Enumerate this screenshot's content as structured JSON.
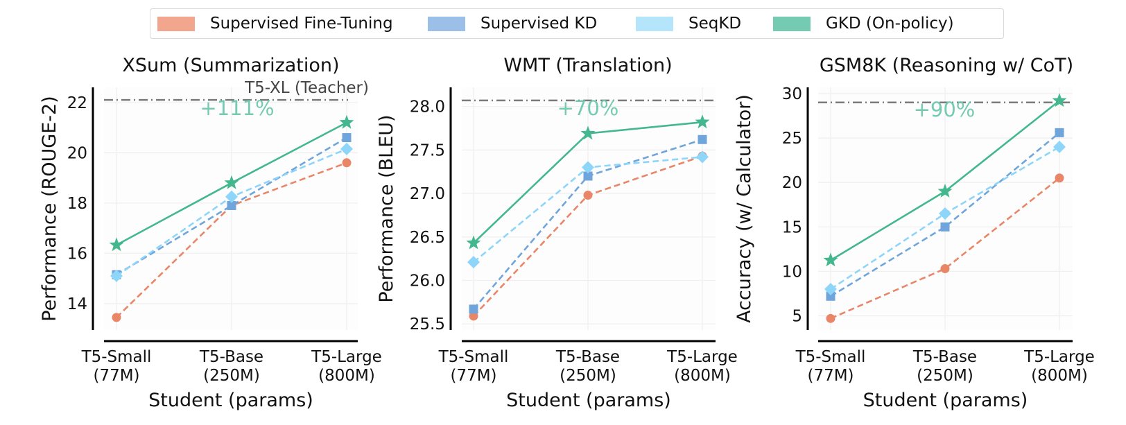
{
  "legend": {
    "items": [
      {
        "label": "Supervised Fine-Tuning",
        "color": "#F2A68D",
        "line_color": "#E98668",
        "marker": "circle",
        "dash": true
      },
      {
        "label": "Supervised KD",
        "color": "#9BBFE6",
        "line_color": "#70A5DC",
        "marker": "square",
        "dash": true
      },
      {
        "label": "SeqKD",
        "color": "#B5E5FB",
        "line_color": "#8DD5F9",
        "marker": "diamond",
        "dash": true
      },
      {
        "label": "GKD (On-policy)",
        "color": "#74CBB1",
        "line_color": "#43B78D",
        "marker": "star",
        "dash": false
      }
    ]
  },
  "chart_data": [
    {
      "type": "line",
      "title": "XSum (Summarization)",
      "xlabel": "Student (params)",
      "ylabel": "Performance (ROUGE-2)",
      "categories": [
        "T5-Small\n(77M)",
        "T5-Base\n(250M)",
        "T5-Large\n(800M)"
      ],
      "yticks": [
        14,
        16,
        18,
        20,
        22
      ],
      "ytick_labels": [
        "14",
        "16",
        "18",
        "20",
        "22"
      ],
      "ylim": [
        12.95,
        22.6
      ],
      "grid": true,
      "teacher": {
        "value": 22.1,
        "label": "T5-XL (Teacher)"
      },
      "annotation": "+111%",
      "series": [
        {
          "name": "Supervised Fine-Tuning",
          "values": [
            13.45,
            17.9,
            19.6
          ]
        },
        {
          "name": "Supervised KD",
          "values": [
            15.15,
            17.9,
            20.6
          ]
        },
        {
          "name": "SeqKD",
          "values": [
            15.1,
            18.25,
            20.15
          ]
        },
        {
          "name": "GKD (On-policy)",
          "values": [
            16.33,
            18.8,
            21.2
          ]
        }
      ]
    },
    {
      "type": "line",
      "title": "WMT (Translation)",
      "xlabel": "Student (params)",
      "ylabel": "Performance (BLEU)",
      "categories": [
        "T5-Small\n(77M)",
        "T5-Base\n(250M)",
        "T5-Large\n(800M)"
      ],
      "yticks": [
        25.5,
        26.0,
        26.5,
        27.0,
        27.5,
        28.0
      ],
      "ytick_labels": [
        "25.5",
        "26.0",
        "26.5",
        "27.0",
        "27.5",
        "28.0"
      ],
      "ylim": [
        25.43,
        28.22
      ],
      "grid": true,
      "teacher": {
        "value": 28.07,
        "label": ""
      },
      "annotation": "+70%",
      "series": [
        {
          "name": "Supervised Fine-Tuning",
          "values": [
            25.59,
            26.98,
            27.43
          ]
        },
        {
          "name": "Supervised KD",
          "values": [
            25.67,
            27.2,
            27.62
          ]
        },
        {
          "name": "SeqKD",
          "values": [
            26.21,
            27.3,
            27.42
          ]
        },
        {
          "name": "GKD (On-policy)",
          "values": [
            26.43,
            27.69,
            27.82
          ]
        }
      ]
    },
    {
      "type": "line",
      "title": "GSM8K (Reasoning w/ CoT)",
      "xlabel": "Student (params)",
      "ylabel": "Accuracy (w/ Calculator)",
      "categories": [
        "T5-Small\n(77M)",
        "T5-Base\n(250M)",
        "T5-Large\n(800M)"
      ],
      "yticks": [
        5,
        10,
        15,
        20,
        25,
        30
      ],
      "ytick_labels": [
        "5",
        "10",
        "15",
        "20",
        "25",
        "30"
      ],
      "ylim": [
        3.4,
        30.7
      ],
      "grid": true,
      "teacher": {
        "value": 29.0,
        "label": ""
      },
      "annotation": "+90%",
      "series": [
        {
          "name": "Supervised Fine-Tuning",
          "values": [
            4.7,
            10.3,
            20.5
          ]
        },
        {
          "name": "Supervised KD",
          "values": [
            7.2,
            15.0,
            25.6
          ]
        },
        {
          "name": "SeqKD",
          "values": [
            8.0,
            16.5,
            24.0
          ]
        },
        {
          "name": "GKD (On-policy)",
          "values": [
            11.25,
            19.0,
            29.2
          ]
        }
      ]
    }
  ]
}
